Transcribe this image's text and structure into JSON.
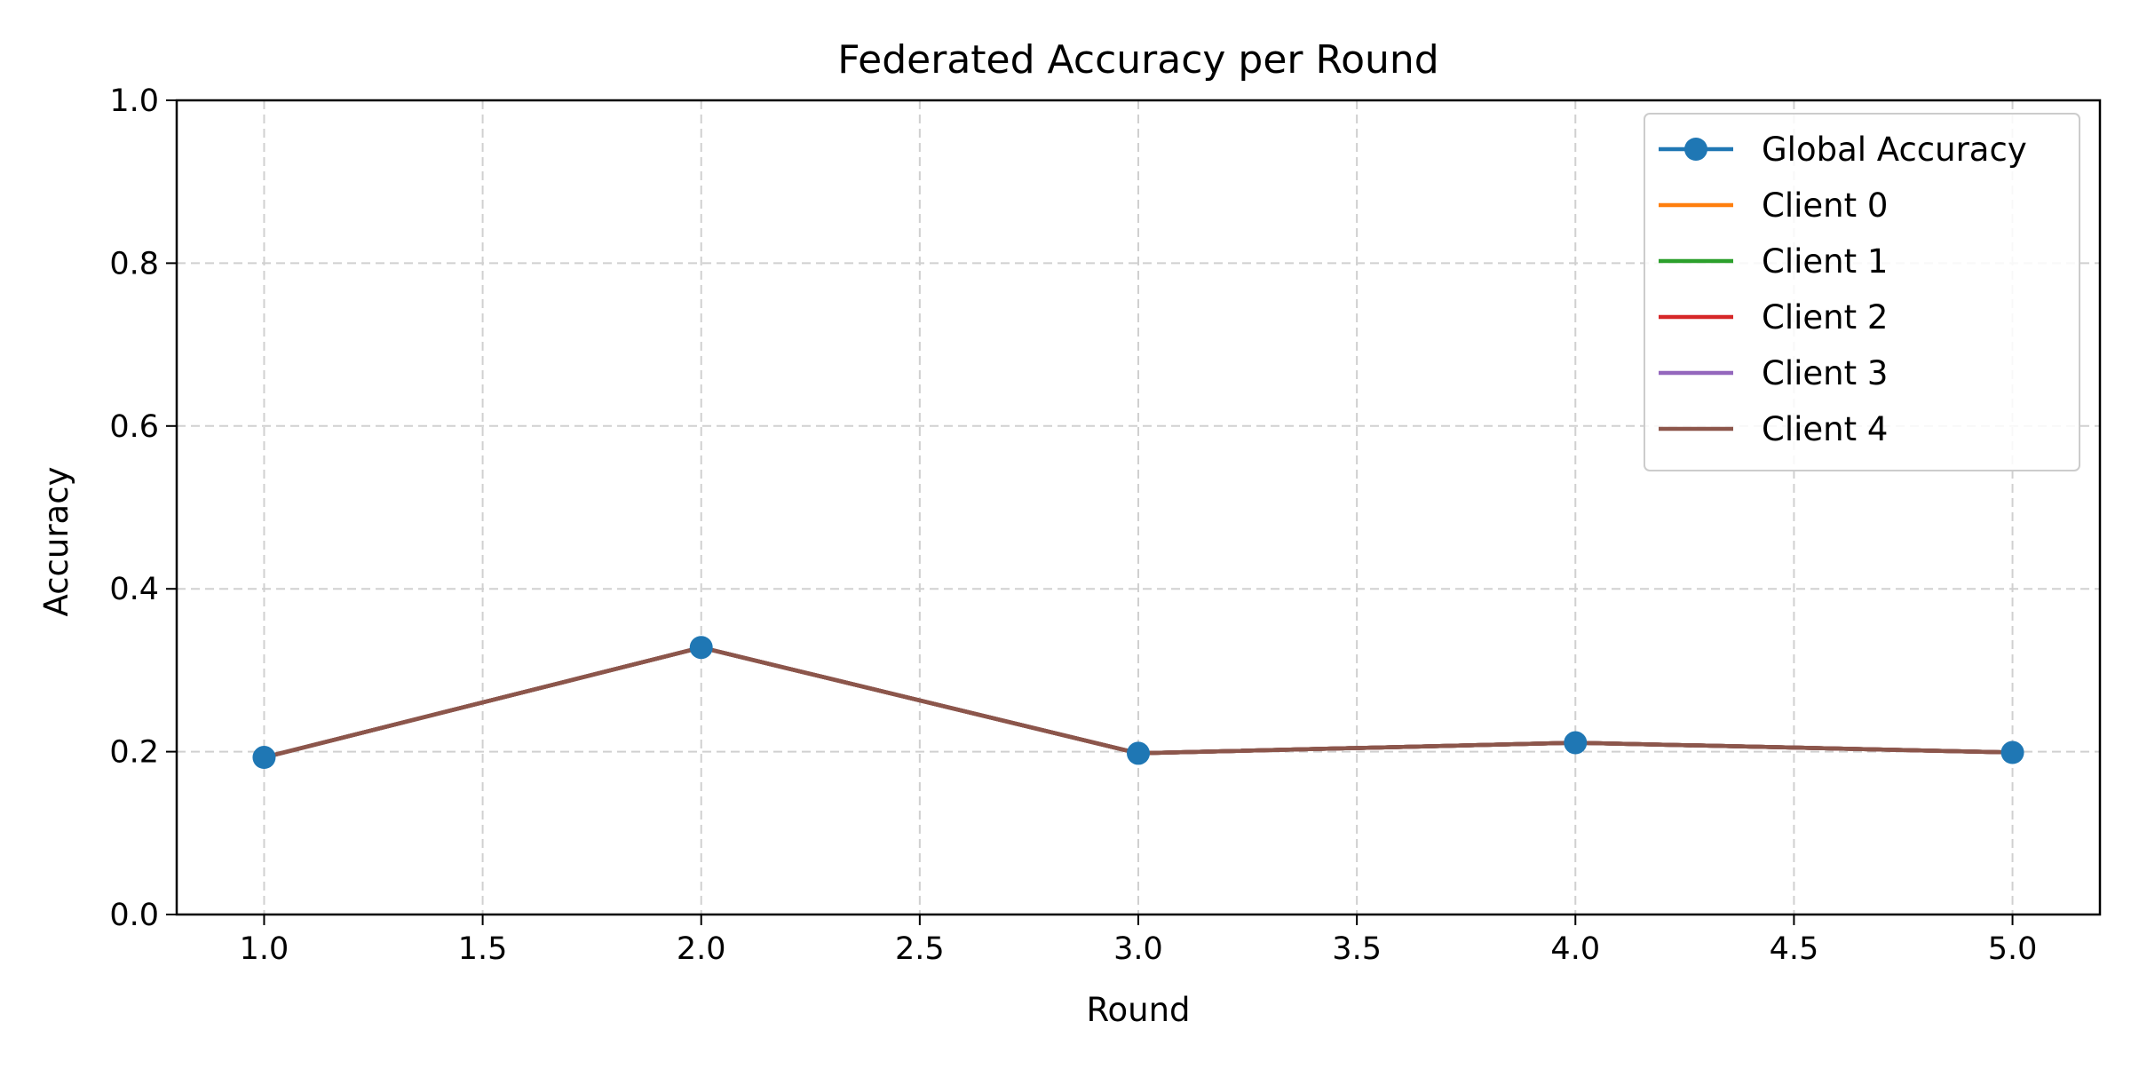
{
  "chart_data": {
    "type": "line",
    "title": "Federated Accuracy per Round",
    "xlabel": "Round",
    "ylabel": "Accuracy",
    "xlim": [
      0.8,
      5.2
    ],
    "ylim": [
      0.0,
      1.0
    ],
    "xticks": [
      1.0,
      1.5,
      2.0,
      2.5,
      3.0,
      3.5,
      4.0,
      4.5,
      5.0
    ],
    "xtick_labels": [
      "1.0",
      "1.5",
      "2.0",
      "2.5",
      "3.0",
      "3.5",
      "4.0",
      "4.5",
      "5.0"
    ],
    "yticks": [
      0.0,
      0.2,
      0.4,
      0.6,
      0.8,
      1.0
    ],
    "ytick_labels": [
      "0.0",
      "0.2",
      "0.4",
      "0.6",
      "0.8",
      "1.0"
    ],
    "grid": true,
    "legend_position": "top-right",
    "x": [
      1,
      2,
      3,
      4,
      5
    ],
    "series": [
      {
        "name": "Global Accuracy",
        "values": [
          0.193,
          0.328,
          0.198,
          0.211,
          0.199
        ],
        "color": "#1f77b4",
        "marker": "circle"
      },
      {
        "name": "Client 0",
        "values": [
          0.193,
          0.328,
          0.198,
          0.211,
          0.199
        ],
        "color": "#ff7f0e",
        "marker": "none"
      },
      {
        "name": "Client 1",
        "values": [
          0.193,
          0.328,
          0.198,
          0.211,
          0.199
        ],
        "color": "#2ca02c",
        "marker": "none"
      },
      {
        "name": "Client 2",
        "values": [
          0.193,
          0.328,
          0.198,
          0.211,
          0.199
        ],
        "color": "#d62728",
        "marker": "none"
      },
      {
        "name": "Client 3",
        "values": [
          0.193,
          0.328,
          0.198,
          0.211,
          0.199
        ],
        "color": "#9467bd",
        "marker": "none"
      },
      {
        "name": "Client 4",
        "values": [
          0.193,
          0.328,
          0.198,
          0.211,
          0.199
        ],
        "color": "#8c564b",
        "marker": "none"
      }
    ]
  }
}
